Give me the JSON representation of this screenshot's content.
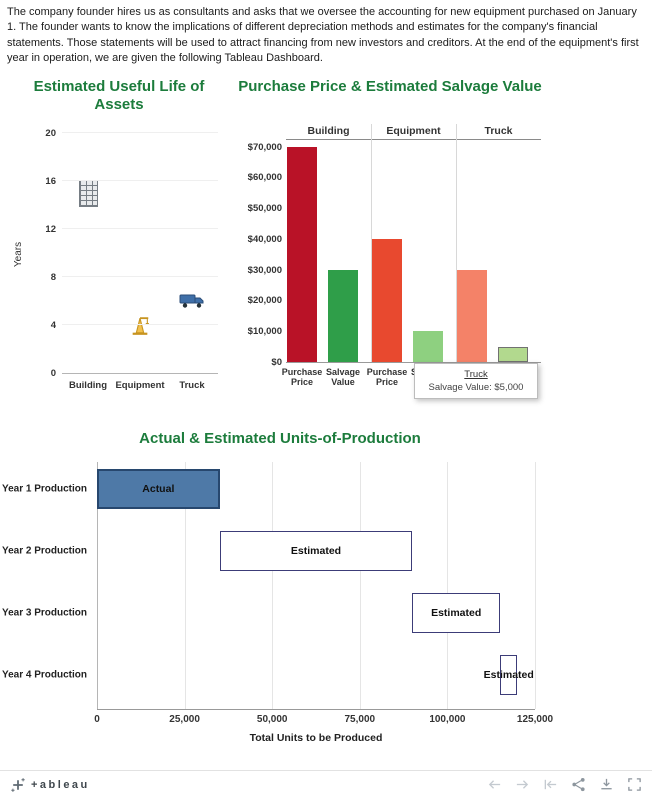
{
  "intro_text": "The company founder hires us as consultants and asks that we oversee the accounting for new equipment purchased on January 1. The founder wants to know the implications of different depreciation methods and estimates for the company's financial statements. Those statements will be used to attract financing from new investors and creditors. At the end of the equipment's first year in operation, we are given the following Tableau Dashboard.",
  "theme": {
    "title_green": "#1c7c3c"
  },
  "chart_data": [
    {
      "type": "scatter",
      "title": "Estimated Useful Life of Assets",
      "ylabel": "Years",
      "ylim": [
        0,
        20
      ],
      "yticks": [
        0,
        4,
        8,
        12,
        16,
        20
      ],
      "categories": [
        "Building",
        "Equipment",
        "Truck"
      ],
      "values": [
        15,
        4,
        6
      ],
      "marks": [
        "building-icon",
        "crane-icon",
        "truck-icon"
      ]
    },
    {
      "type": "bar",
      "title": "Purchase Price & Estimated Salvage Value",
      "measure_labels": [
        [
          "Purchase",
          "Price"
        ],
        [
          "Salvage",
          "Value"
        ]
      ],
      "series": [
        {
          "group": "Building",
          "values": [
            70000,
            30000
          ],
          "colors": [
            "#b91227",
            "#2f9e49"
          ]
        },
        {
          "group": "Equipment",
          "values": [
            40000,
            10000
          ],
          "colors": [
            "#e8492f",
            "#8ed080"
          ]
        },
        {
          "group": "Truck",
          "values": [
            30000,
            5000
          ],
          "colors": [
            "#f48268",
            "#b2d98e"
          ],
          "highlighted": true
        }
      ],
      "yticks": [
        0,
        10000,
        20000,
        30000,
        40000,
        50000,
        60000,
        70000
      ],
      "ytick_labels": [
        "$0",
        "$10,000",
        "$20,000",
        "$30,000",
        "$40,000",
        "$50,000",
        "$60,000",
        "$70,000"
      ],
      "ylim": [
        0,
        72500
      ],
      "legend": "none"
    },
    {
      "type": "bar",
      "title": "Actual & Estimated Units-of-Production",
      "categories": [
        "Year 1 Production",
        "Year 2 Production",
        "Year 3 Production",
        "Year 4 Production"
      ],
      "bars": [
        {
          "label": "Actual",
          "start": 0,
          "end": 35000,
          "style": "actual"
        },
        {
          "label": "Estimated",
          "start": 35000,
          "end": 90000,
          "style": "estimated"
        },
        {
          "label": "Estimated",
          "start": 90000,
          "end": 115000,
          "style": "estimated"
        },
        {
          "label": "Estimated",
          "start": 115000,
          "end": 120000,
          "style": "estimated"
        }
      ],
      "xlabel": "Total Units to be Produced",
      "xticks": [
        0,
        25000,
        50000,
        75000,
        100000,
        125000
      ],
      "xtick_labels": [
        "0",
        "25,000",
        "50,000",
        "75,000",
        "100,000",
        "125,000"
      ],
      "xlim": [
        0,
        125000
      ]
    }
  ],
  "tooltip": {
    "title": "Truck",
    "text": "Salvage Value: $5,000"
  },
  "toolbar": {
    "logo_text": "+ableau",
    "icons": [
      "undo-icon",
      "redo-icon",
      "revert-icon",
      "share-icon",
      "download-icon",
      "fullscreen-icon"
    ]
  }
}
